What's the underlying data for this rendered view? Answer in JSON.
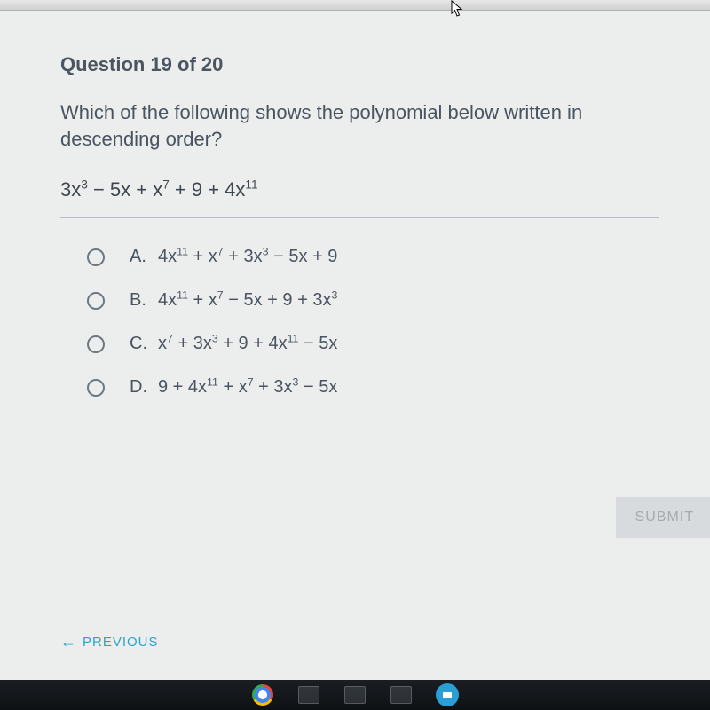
{
  "header": {
    "question_label": "Question 19 of 20"
  },
  "question": {
    "text": "Which of the following shows the polynomial below written in descending order?",
    "expression": "3x<sup>3</sup> − 5x + x<sup>7</sup> + 9 + 4x<sup>11</sup>"
  },
  "choices": [
    {
      "letter": "A.",
      "expr": "4x<sup>11</sup> + x<sup>7</sup> + 3x<sup>3</sup> − 5x + 9"
    },
    {
      "letter": "B.",
      "expr": "4x<sup>11</sup> + x<sup>7</sup> − 5x + 9 + 3x<sup>3</sup>"
    },
    {
      "letter": "C.",
      "expr": "x<sup>7</sup> + 3x<sup>3</sup> + 9 + 4x<sup>11</sup> − 5x"
    },
    {
      "letter": "D.",
      "expr": "9 + 4x<sup>11</sup> + x<sup>7</sup> + 3x<sup>3</sup> − 5x"
    }
  ],
  "buttons": {
    "submit": "SUBMIT",
    "previous": "PREVIOUS"
  },
  "colors": {
    "page_bg": "#eceeee",
    "text": "#4a5460",
    "accent": "#2aa3cf",
    "submit_disabled_bg": "#d7dbdd",
    "submit_disabled_fg": "#a5abae",
    "radio_border": "#6e7880",
    "divider": "#b8bfc4",
    "taskbar_bg": "#12161a"
  }
}
